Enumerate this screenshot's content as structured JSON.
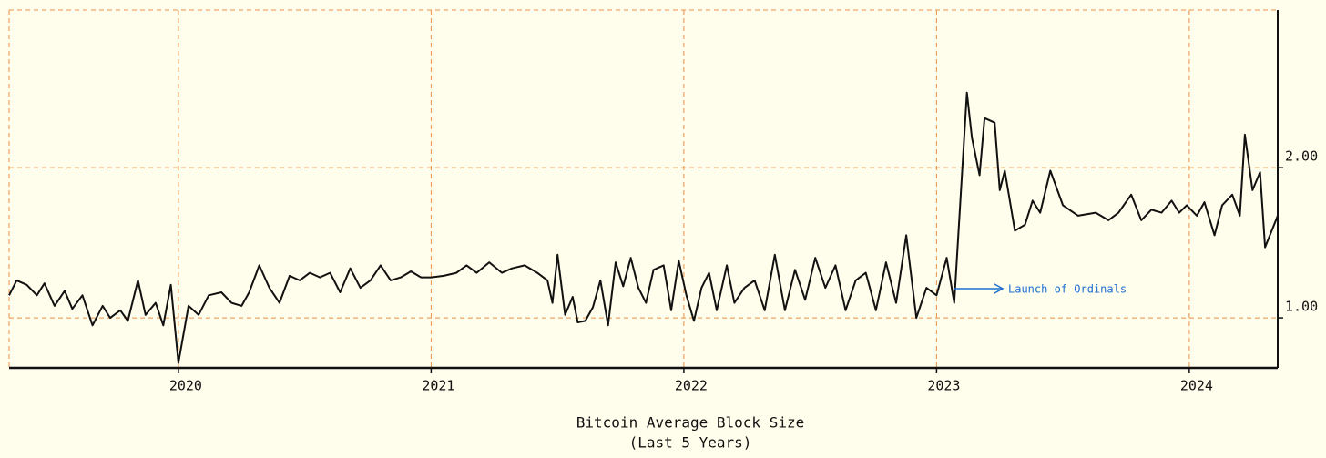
{
  "chart_data": {
    "type": "line",
    "title": "Bitcoin Average Block Size",
    "subtitle": "(Last 5 Years)",
    "annotation": "Launch of Ordinals",
    "color": "#111111",
    "grid": true,
    "xlim": [
      2019.33,
      2024.35
    ],
    "xticks": [
      2020,
      2021,
      2022,
      2023,
      2024
    ],
    "ylim": [
      0.667,
      3.05
    ],
    "yticks": [
      {
        "value": 1,
        "label": "1.00"
      },
      {
        "value": 2,
        "label": "2.00"
      }
    ],
    "x": [
      2019.33,
      2019.36,
      2019.4,
      2019.44,
      2019.47,
      2019.51,
      2019.55,
      2019.58,
      2019.62,
      2019.66,
      2019.7,
      2019.73,
      2019.77,
      2019.8,
      2019.84,
      2019.87,
      2019.91,
      2019.94,
      2019.97,
      2020.0,
      2020.04,
      2020.08,
      2020.12,
      2020.17,
      2020.21,
      2020.25,
      2020.28,
      2020.32,
      2020.36,
      2020.4,
      2020.44,
      2020.48,
      2020.52,
      2020.56,
      2020.6,
      2020.64,
      2020.68,
      2020.72,
      2020.76,
      2020.8,
      2020.84,
      2020.88,
      2020.92,
      2020.96,
      2021.0,
      2021.05,
      2021.1,
      2021.14,
      2021.18,
      2021.23,
      2021.28,
      2021.32,
      2021.37,
      2021.42,
      2021.46,
      2021.48,
      2021.5,
      2021.53,
      2021.56,
      2021.58,
      2021.61,
      2021.64,
      2021.67,
      2021.7,
      2021.73,
      2021.76,
      2021.79,
      2021.82,
      2021.85,
      2021.88,
      2021.92,
      2021.95,
      2021.98,
      2022.01,
      2022.04,
      2022.07,
      2022.1,
      2022.13,
      2022.17,
      2022.2,
      2022.24,
      2022.28,
      2022.32,
      2022.36,
      2022.4,
      2022.44,
      2022.48,
      2022.52,
      2022.56,
      2022.6,
      2022.64,
      2022.68,
      2022.72,
      2022.76,
      2022.8,
      2022.84,
      2022.88,
      2022.92,
      2022.96,
      2023.0,
      2023.04,
      2023.07,
      2023.12,
      2023.14,
      2023.17,
      2023.19,
      2023.23,
      2023.25,
      2023.27,
      2023.31,
      2023.35,
      2023.38,
      2023.41,
      2023.45,
      2023.5,
      2023.56,
      2023.63,
      2023.68,
      2023.72,
      2023.77,
      2023.81,
      2023.85,
      2023.89,
      2023.93,
      2023.96,
      2023.99,
      2024.03,
      2024.06,
      2024.1,
      2024.13,
      2024.17,
      2024.2,
      2024.22,
      2024.25,
      2024.28,
      2024.3,
      2024.35
    ],
    "values": [
      1.15,
      1.25,
      1.22,
      1.15,
      1.23,
      1.08,
      1.18,
      1.06,
      1.15,
      0.95,
      1.08,
      1.0,
      1.05,
      0.98,
      1.25,
      1.02,
      1.1,
      0.95,
      1.22,
      0.7,
      1.08,
      1.02,
      1.15,
      1.17,
      1.1,
      1.08,
      1.17,
      1.35,
      1.2,
      1.1,
      1.28,
      1.25,
      1.3,
      1.27,
      1.3,
      1.17,
      1.33,
      1.2,
      1.25,
      1.35,
      1.25,
      1.27,
      1.31,
      1.27,
      1.27,
      1.28,
      1.3,
      1.35,
      1.3,
      1.37,
      1.3,
      1.33,
      1.35,
      1.3,
      1.25,
      1.1,
      1.42,
      1.02,
      1.14,
      0.97,
      0.98,
      1.07,
      1.25,
      0.95,
      1.37,
      1.21,
      1.4,
      1.2,
      1.1,
      1.32,
      1.35,
      1.05,
      1.38,
      1.15,
      0.98,
      1.2,
      1.3,
      1.05,
      1.35,
      1.1,
      1.2,
      1.25,
      1.05,
      1.42,
      1.05,
      1.32,
      1.12,
      1.4,
      1.2,
      1.35,
      1.05,
      1.25,
      1.3,
      1.05,
      1.37,
      1.1,
      1.55,
      1.0,
      1.2,
      1.15,
      1.4,
      1.1,
      2.5,
      2.2,
      1.95,
      2.33,
      2.3,
      1.85,
      1.98,
      1.58,
      1.62,
      1.78,
      1.7,
      1.98,
      1.75,
      1.68,
      1.7,
      1.65,
      1.7,
      1.82,
      1.65,
      1.72,
      1.7,
      1.78,
      1.7,
      1.75,
      1.68,
      1.77,
      1.55,
      1.75,
      1.82,
      1.68,
      2.22,
      1.85,
      1.97,
      1.47,
      1.68
    ]
  }
}
